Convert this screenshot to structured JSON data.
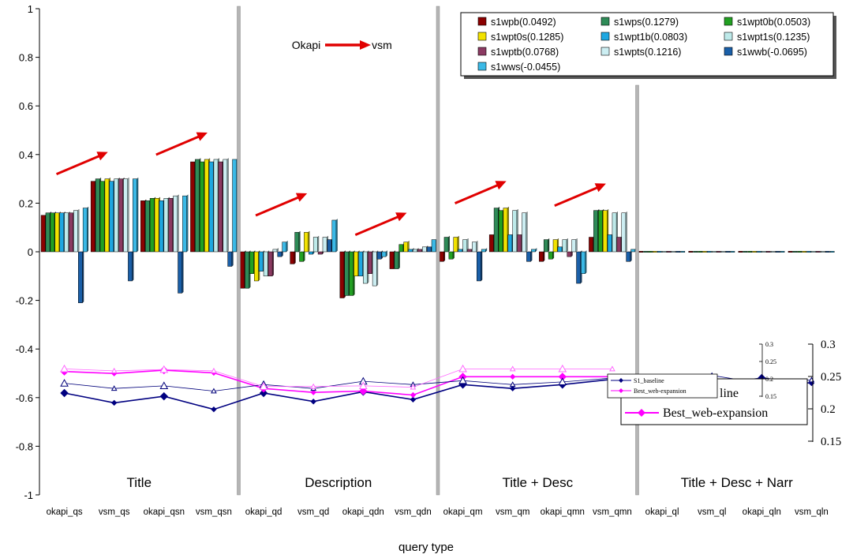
{
  "chart_data": {
    "type": "bar",
    "xlabel": "query type",
    "ylim": [
      -1,
      1
    ],
    "yticks": [
      "-1",
      "-0.8",
      "-0.6",
      "-0.4",
      "-0.2",
      "0",
      "0.2",
      "0.4",
      "0.6",
      "0.8",
      "1"
    ],
    "ytick_values": [
      -1,
      -0.8,
      -0.6,
      -0.4,
      -0.2,
      0,
      0.2,
      0.4,
      0.6,
      0.8,
      1
    ],
    "categories": [
      "okapi_qs",
      "vsm_qs",
      "okapi_qsn",
      "vsm_qsn",
      "okapi_qd",
      "vsm_qd",
      "okapi_qdn",
      "vsm_qdn",
      "okapi_qm",
      "vsm_qm",
      "okapi_qmn",
      "vsm_qmn",
      "okapi_ql",
      "vsm_ql",
      "okapi_qln",
      "vsm_qln"
    ],
    "groups": [
      "Title",
      "Description",
      "Title + Desc",
      "Title + Desc + Narr"
    ],
    "annotation": {
      "from": "Okapi",
      "to": "vsm"
    },
    "legend_position": "top-right",
    "series": [
      {
        "name": "s1wpb(0.0492)",
        "color": "#8B0000",
        "values": [
          0.15,
          0.29,
          0.21,
          0.37,
          -0.15,
          -0.05,
          -0.19,
          -0.07,
          -0.04,
          0.07,
          -0.04,
          0.06,
          0,
          0,
          0,
          0
        ]
      },
      {
        "name": "s1wps(0.1279)",
        "color": "#2E8B57",
        "values": [
          0.16,
          0.3,
          0.21,
          0.38,
          -0.15,
          0.08,
          -0.18,
          -0.07,
          0.06,
          0.18,
          0.05,
          0.17,
          0,
          0,
          0,
          0
        ]
      },
      {
        "name": "s1wpt0b(0.0503)",
        "color": "#22A022",
        "values": [
          0.16,
          0.29,
          0.22,
          0.37,
          -0.09,
          -0.04,
          -0.18,
          0.03,
          -0.03,
          0.17,
          -0.03,
          0.17,
          0,
          0,
          0,
          0
        ]
      },
      {
        "name": "s1wpt0s(0.1285)",
        "color": "#F2E200",
        "values": [
          0.16,
          0.3,
          0.22,
          0.38,
          -0.12,
          0.08,
          -0.1,
          0.04,
          0.06,
          0.18,
          0.05,
          0.17,
          0,
          0,
          0,
          0
        ]
      },
      {
        "name": "s1wpt1b(0.0803)",
        "color": "#1EA7E1",
        "values": [
          0.16,
          0.29,
          0.21,
          0.37,
          -0.08,
          -0.01,
          -0.1,
          0.01,
          0.01,
          0.07,
          0.02,
          0.07,
          0,
          0,
          0,
          0
        ]
      },
      {
        "name": "s1wpt1s(0.1235)",
        "color": "#BEEAEA",
        "values": [
          0.16,
          0.3,
          0.22,
          0.38,
          -0.1,
          0.06,
          -0.13,
          0.01,
          0.05,
          0.17,
          0.05,
          0.16,
          0,
          0,
          0,
          0
        ]
      },
      {
        "name": "s1wptb(0.0768)",
        "color": "#8B3A62",
        "values": [
          0.16,
          0.3,
          0.22,
          0.37,
          -0.1,
          -0.01,
          -0.09,
          0.01,
          0.01,
          0.07,
          -0.02,
          0.06,
          0,
          0,
          0,
          0
        ]
      },
      {
        "name": "s1wpts(0.1216)",
        "color": "#CCEEF2",
        "values": [
          0.17,
          0.3,
          0.23,
          0.38,
          0.01,
          0.06,
          -0.14,
          0.02,
          0.04,
          0.16,
          0.05,
          0.16,
          0,
          0,
          0,
          0
        ]
      },
      {
        "name": "s1wwb(-0.0695)",
        "color": "#1A5FA8",
        "values": [
          -0.21,
          -0.12,
          -0.17,
          -0.06,
          -0.02,
          0.05,
          -0.03,
          0.02,
          -0.12,
          -0.04,
          -0.13,
          -0.04,
          0,
          0,
          0,
          0
        ]
      },
      {
        "name": "s1wws(-0.0455)",
        "color": "#3BB9E6",
        "values": [
          0.18,
          0.3,
          0.23,
          0.38,
          0.04,
          0.13,
          -0.02,
          0.05,
          0.01,
          0.01,
          -0.09,
          0.01,
          0,
          0,
          0,
          0
        ]
      }
    ],
    "inset": {
      "type": "line",
      "legend": [
        "S1_baseline",
        "Best_web-expansion"
      ],
      "legend_large": [
        "line",
        "Best_web-expansion"
      ],
      "yticks_small": [
        "0.3",
        "0.25",
        "0.2",
        "0.15"
      ],
      "yticks_large": [
        "0.3",
        "0.25",
        "0.2",
        "0.15"
      ],
      "ylim": [
        0.15,
        0.3
      ],
      "series": [
        {
          "name": "S1_baseline",
          "color": "#000080",
          "marker": "diamond",
          "values": [
            0.225,
            0.21,
            0.22,
            0.2,
            0.225,
            0.212,
            0.227,
            0.215,
            0.238,
            0.232,
            0.238,
            0.246,
            0.246,
            0.238,
            0.248,
            0.24
          ]
        },
        {
          "name": "Best_web-expansion",
          "color": "#FF00FF",
          "marker": "diamond",
          "values": [
            0.258,
            0.255,
            0.26,
            0.256,
            0.232,
            0.226,
            0.228,
            0.222,
            0.25,
            0.25,
            0.25,
            0.25
          ]
        },
        {
          "name": "S1_baseline",
          "color": "#00007A",
          "marker": "triangle",
          "values": [
            0.24,
            0.232,
            0.236,
            0.228,
            0.238,
            0.232,
            0.243,
            0.238,
            0.244,
            0.238,
            0.242,
            0.248,
            0.242,
            0.252,
            0.24,
            0.245
          ]
        },
        {
          "name": "Best_web-expansion",
          "color": "#FF66FF",
          "marker": "triangle",
          "values": [
            0.262,
            0.259,
            0.261,
            0.259,
            0.235,
            0.235,
            0.236,
            0.234,
            0.262,
            0.262,
            0.262,
            0.262
          ]
        }
      ]
    }
  }
}
